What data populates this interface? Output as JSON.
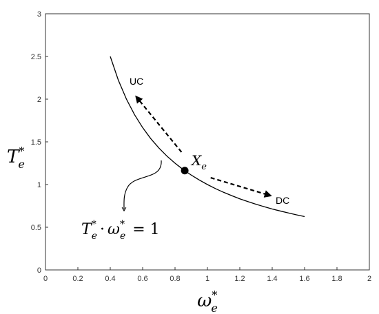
{
  "chart_data": {
    "type": "line",
    "title": "",
    "xlabel": {
      "base": "ω",
      "sub": "e",
      "sup": "*"
    },
    "ylabel": {
      "base": "T",
      "sub": "e",
      "sup": "*"
    },
    "xlim": [
      0,
      2
    ],
    "ylim": [
      0,
      3
    ],
    "xticks": [
      "0",
      "0.2",
      "0.4",
      "0.6",
      "0.8",
      "1",
      "1.2",
      "1.4",
      "1.6",
      "1.8",
      "2"
    ],
    "yticks": [
      "0",
      "0.5",
      "1",
      "1.5",
      "2",
      "2.5",
      "3"
    ],
    "grid": false,
    "legend": "none",
    "curve": {
      "x": [
        0.4,
        0.45,
        0.5,
        0.55,
        0.6,
        0.65,
        0.7,
        0.75,
        0.8,
        0.85,
        0.9,
        0.95,
        1.0,
        1.05,
        1.1,
        1.15,
        1.2,
        1.25,
        1.3,
        1.35,
        1.4,
        1.45,
        1.5,
        1.55,
        1.6
      ],
      "y": [
        2.5,
        2.222,
        2.0,
        1.818,
        1.667,
        1.538,
        1.429,
        1.333,
        1.25,
        1.176,
        1.111,
        1.053,
        1.0,
        0.952,
        0.909,
        0.87,
        0.833,
        0.8,
        0.769,
        0.741,
        0.714,
        0.69,
        0.667,
        0.645,
        0.625
      ],
      "equation": {
        "t": "T",
        "w": "ω",
        "sub": "e",
        "sup": "*",
        "rhs": "= 1"
      }
    },
    "point": {
      "label_base": "X",
      "label_sub": "e",
      "x": 0.86,
      "y": 1.163
    },
    "arrows": [
      {
        "label": "UC",
        "from": [
          0.84,
          1.38
        ],
        "to": [
          0.56,
          2.03
        ]
      },
      {
        "label": "DC",
        "from": [
          1.02,
          1.08
        ],
        "to": [
          1.39,
          0.87
        ]
      }
    ],
    "colors": {
      "line": "#000000",
      "axis": "#333333",
      "background": "#ffffff"
    }
  }
}
